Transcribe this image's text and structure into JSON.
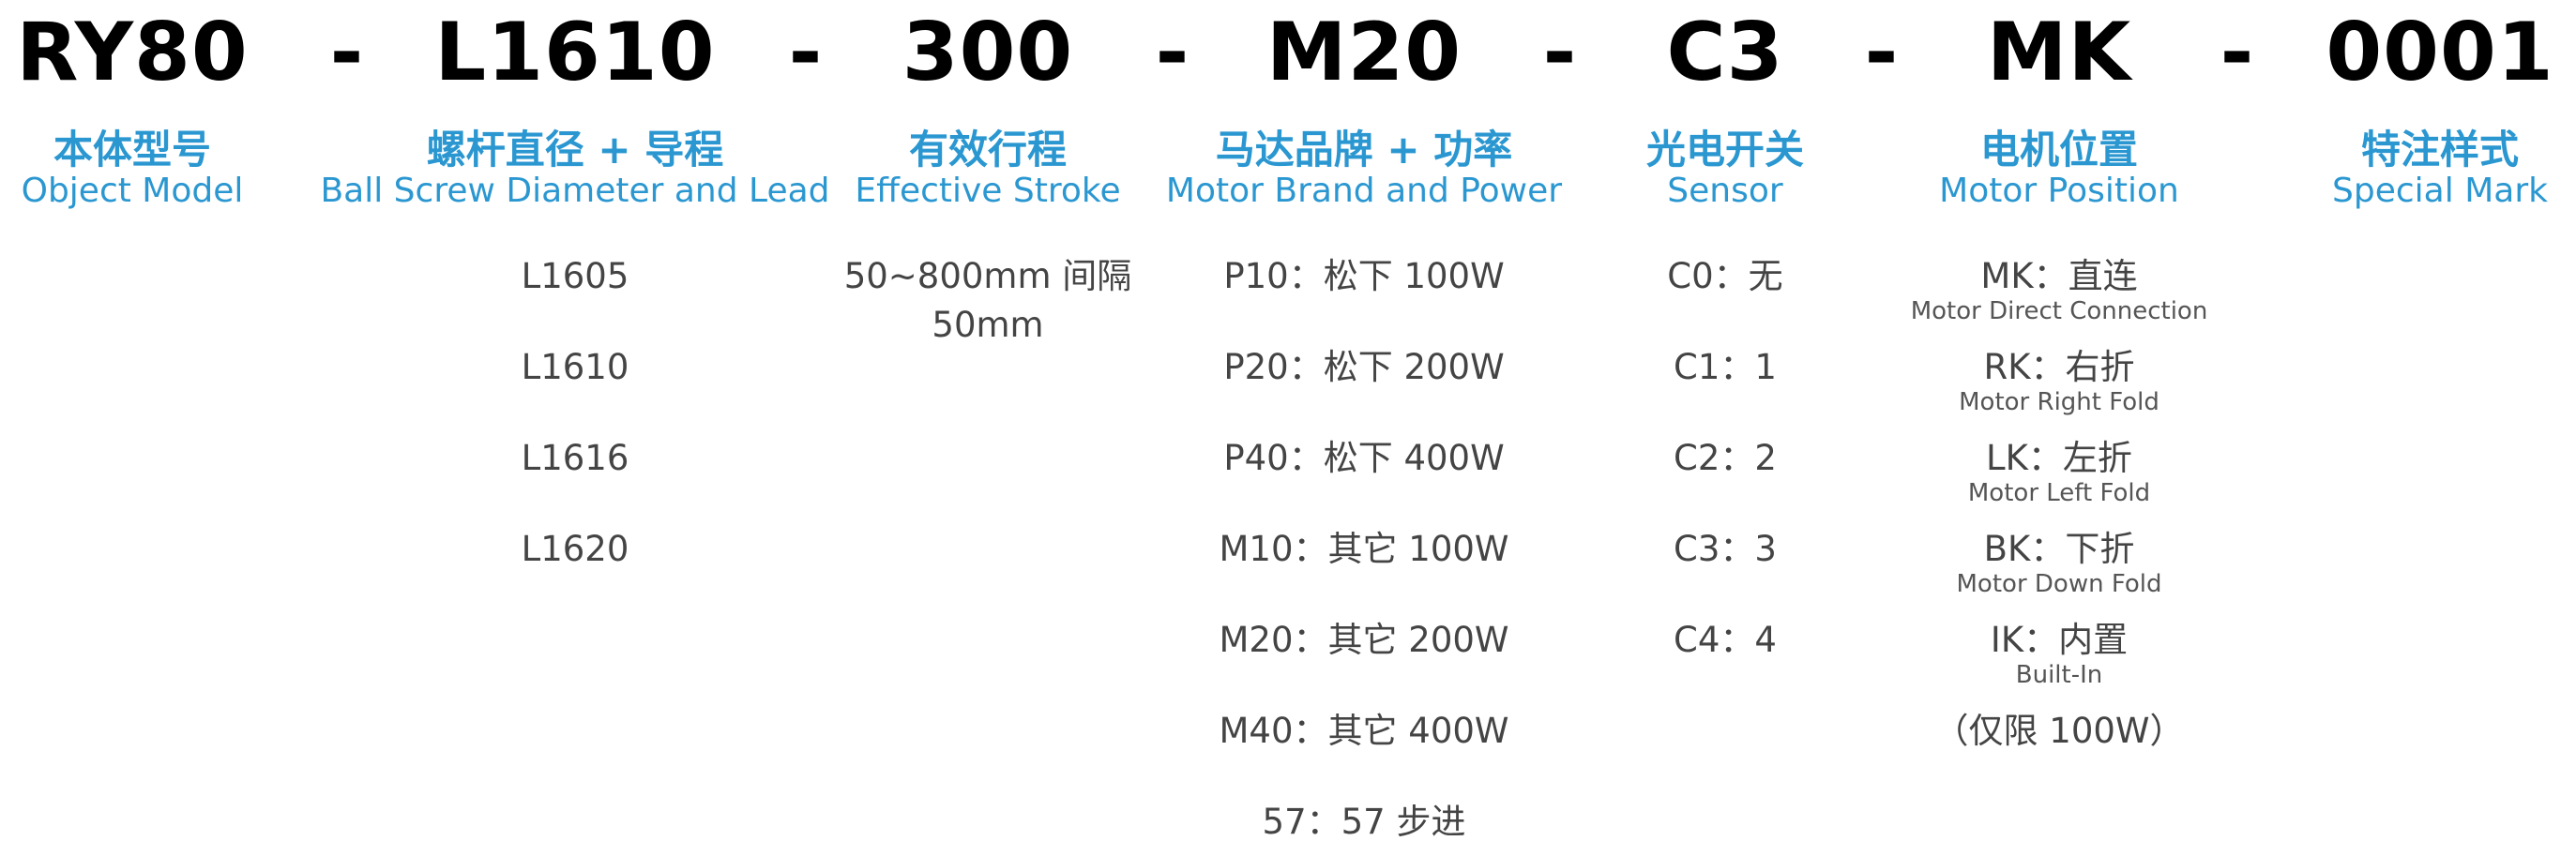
{
  "code_parts": [
    "RY80",
    "-",
    "L1610",
    "-",
    "300",
    "-",
    "M20",
    "-",
    "C3",
    "-",
    "MK",
    "-",
    "0001"
  ],
  "columns": [
    {
      "zh": "本体型号",
      "en": "Object Model",
      "options": []
    },
    {
      "zh": "螺杆直径 + 导程",
      "en": "Ball Screw Diameter and Lead",
      "options": [
        "L1605",
        "L1610",
        "L1616",
        "L1620"
      ]
    },
    {
      "zh": "有效行程",
      "en": "Effective Stroke",
      "options": [
        "50~800mm 间隔",
        "50mm"
      ]
    },
    {
      "zh": "马达品牌 + 功率",
      "en": "Motor Brand and Power",
      "options": [
        "P10：松下 100W",
        "P20：松下 200W",
        "P40：松下 400W",
        "M10：其它 100W",
        "M20：其它 200W",
        "M40：其它 400W",
        "57：57 步进"
      ]
    },
    {
      "zh": "光电开关",
      "en": "Sensor",
      "options": [
        "C0：无",
        "C1：1",
        "C2：2",
        "C3：3",
        "C4：4"
      ]
    },
    {
      "zh": "电机位置",
      "en": "Motor Position",
      "options": [
        {
          "main": "MK：直连",
          "sub": "Motor Direct Connection"
        },
        {
          "main": "RK：右折",
          "sub": "Motor Right Fold"
        },
        {
          "main": "LK：左折",
          "sub": "Motor Left Fold"
        },
        {
          "main": "BK：下折",
          "sub": "Motor Down Fold"
        },
        {
          "main": "IK：内置",
          "sub": "Built-In"
        },
        {
          "main": "（仅限 100W）"
        }
      ]
    },
    {
      "zh": "特注样式",
      "en": "Special Mark",
      "options": []
    }
  ],
  "colors": {
    "heading": "#2b97d1",
    "code": "#000000",
    "option": "#444444"
  }
}
